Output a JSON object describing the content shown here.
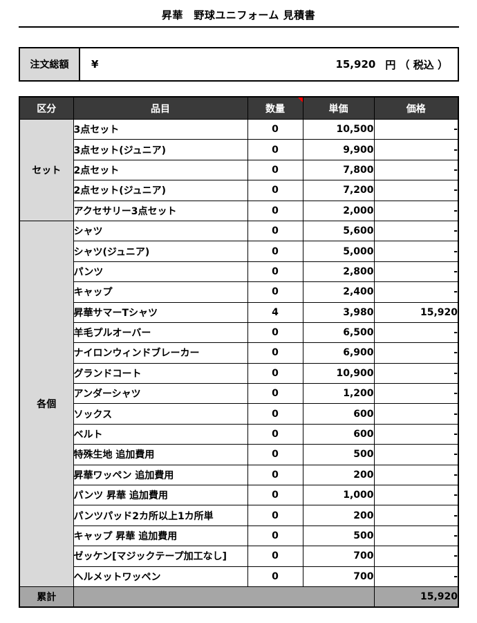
{
  "title": "昇華　野球ユニフォーム 見積書",
  "order_total": {
    "label": "注文総額",
    "currency": "¥",
    "amount": "15,920",
    "suffix": "円 （ 税込 ）"
  },
  "colors": {
    "header_bg": "#3a3a3a",
    "header_text": "#ffffff",
    "group_bg": "#d9d9d9",
    "total_bg": "#a6a6a6",
    "border": "#000000",
    "comment_marker": "#ff0000"
  },
  "table": {
    "headers": [
      "区分",
      "品目",
      "数量",
      "単価",
      "価格"
    ],
    "comment_marker_icon": "red-corner-triangle",
    "groups": [
      {
        "label": "セット",
        "rows": [
          {
            "item": "3点セット",
            "qty": "0",
            "unit_price": "10,500",
            "price": "-"
          },
          {
            "item": "3点セット(ジュニア)",
            "qty": "0",
            "unit_price": "9,900",
            "price": "-"
          },
          {
            "item": "2点セット",
            "qty": "0",
            "unit_price": "7,800",
            "price": "-"
          },
          {
            "item": "2点セット(ジュニア)",
            "qty": "0",
            "unit_price": "7,200",
            "price": "-"
          },
          {
            "item": "アクセサリー3点セット",
            "qty": "0",
            "unit_price": "2,000",
            "price": "-"
          }
        ]
      },
      {
        "label": "各個",
        "rows": [
          {
            "item": "シャツ",
            "qty": "0",
            "unit_price": "5,600",
            "price": "-"
          },
          {
            "item": "シャツ(ジュニア)",
            "qty": "0",
            "unit_price": "5,000",
            "price": "-"
          },
          {
            "item": "パンツ",
            "qty": "0",
            "unit_price": "2,800",
            "price": "-"
          },
          {
            "item": "キャップ",
            "qty": "0",
            "unit_price": "2,400",
            "price": "-"
          },
          {
            "item": "昇華サマーTシャツ",
            "qty": "4",
            "unit_price": "3,980",
            "price": "15,920"
          },
          {
            "item": "羊毛プルオーバー",
            "qty": "0",
            "unit_price": "6,500",
            "price": "-"
          },
          {
            "item": "ナイロンウィンドブレーカー",
            "qty": "0",
            "unit_price": "6,900",
            "price": "-"
          },
          {
            "item": "グランドコート",
            "qty": "0",
            "unit_price": "10,900",
            "price": "-"
          },
          {
            "item": "アンダーシャツ",
            "qty": "0",
            "unit_price": "1,200",
            "price": "-"
          },
          {
            "item": "ソックス",
            "qty": "0",
            "unit_price": "600",
            "price": "-"
          },
          {
            "item": "ベルト",
            "qty": "0",
            "unit_price": "600",
            "price": "-"
          },
          {
            "item": "特殊生地 追加費用",
            "qty": "0",
            "unit_price": "500",
            "price": "-"
          },
          {
            "item": "昇華ワッペン 追加費用",
            "qty": "0",
            "unit_price": "200",
            "price": "-"
          },
          {
            "item": "パンツ 昇華 追加費用",
            "qty": "0",
            "unit_price": "1,000",
            "price": "-"
          },
          {
            "item": "パンツパッド2カ所以上1カ所単",
            "qty": "0",
            "unit_price": "200",
            "price": "-"
          },
          {
            "item": "キャップ 昇華 追加費用",
            "qty": "0",
            "unit_price": "500",
            "price": "-"
          },
          {
            "item": "ゼッケン[マジックテープ加工なし]",
            "qty": "0",
            "unit_price": "700",
            "price": "-"
          },
          {
            "item": "ヘルメットワッペン",
            "qty": "0",
            "unit_price": "700",
            "price": "-"
          }
        ]
      }
    ],
    "total": {
      "label": "累計",
      "price": "15,920"
    }
  }
}
